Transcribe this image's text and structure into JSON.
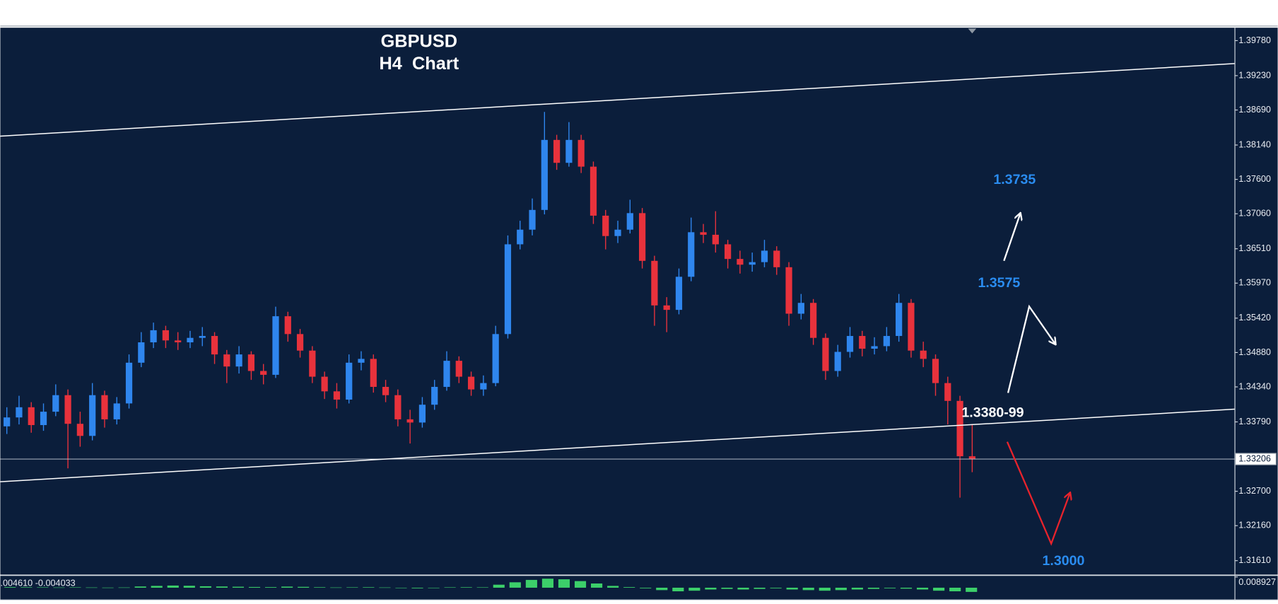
{
  "chart_data": [
    {
      "type": "candlestick",
      "title": "GBPUSD",
      "subtitle": "H4  Chart",
      "open": [
        1.3372,
        1.3386,
        1.3402,
        1.3374,
        1.3395,
        1.3421,
        1.3376,
        1.3357,
        1.3421,
        1.3383,
        1.3408,
        1.3472,
        1.3504,
        1.3523,
        1.3507,
        1.3504,
        1.3511,
        1.3514,
        1.3485,
        1.3466,
        1.3485,
        1.3459,
        1.3453,
        1.3545,
        1.3517,
        1.3491,
        1.345,
        1.3427,
        1.3414,
        1.3472,
        1.3478,
        1.3434,
        1.3421,
        1.3383,
        1.3378,
        1.3406,
        1.3434,
        1.3475,
        1.345,
        1.343,
        1.344,
        1.3517,
        1.3658,
        1.3681,
        1.3712,
        1.3822,
        1.3786,
        1.3822,
        1.378,
        1.3703,
        1.3671,
        1.3681,
        1.3707,
        1.3632,
        1.3562,
        1.3555,
        1.3607,
        1.3677,
        1.3673,
        1.3658,
        1.3635,
        1.3626,
        1.363,
        1.3648,
        1.3622,
        1.3549,
        1.3566,
        1.3511,
        1.3459,
        1.3489,
        1.3514,
        1.3494,
        1.3498,
        1.3514,
        1.3566,
        1.3491,
        1.3478,
        1.344,
        1.3412,
        1.3325
      ],
      "high": [
        1.3402,
        1.342,
        1.341,
        1.3408,
        1.3438,
        1.343,
        1.3395,
        1.344,
        1.3428,
        1.3418,
        1.3485,
        1.352,
        1.3535,
        1.353,
        1.352,
        1.3522,
        1.3528,
        1.352,
        1.3492,
        1.3498,
        1.349,
        1.347,
        1.356,
        1.3552,
        1.3525,
        1.3498,
        1.3458,
        1.344,
        1.3485,
        1.349,
        1.3485,
        1.3445,
        1.343,
        1.3398,
        1.3418,
        1.3445,
        1.349,
        1.3482,
        1.3458,
        1.3452,
        1.353,
        1.3672,
        1.3695,
        1.373,
        1.3866,
        1.383,
        1.385,
        1.383,
        1.3788,
        1.3712,
        1.3695,
        1.3728,
        1.3715,
        1.364,
        1.3575,
        1.362,
        1.37,
        1.369,
        1.371,
        1.3665,
        1.3648,
        1.3645,
        1.3665,
        1.3655,
        1.363,
        1.358,
        1.3572,
        1.3518,
        1.35,
        1.3528,
        1.3522,
        1.3512,
        1.3528,
        1.358,
        1.3572,
        1.3505,
        1.3485,
        1.345,
        1.342,
        1.3375
      ],
      "low": [
        1.336,
        1.3375,
        1.3362,
        1.3365,
        1.3388,
        1.3306,
        1.334,
        1.335,
        1.337,
        1.3375,
        1.34,
        1.3465,
        1.3495,
        1.3495,
        1.3492,
        1.3495,
        1.3498,
        1.347,
        1.344,
        1.3455,
        1.3445,
        1.3438,
        1.3448,
        1.3505,
        1.348,
        1.344,
        1.3415,
        1.34,
        1.3408,
        1.346,
        1.3425,
        1.341,
        1.3372,
        1.3345,
        1.337,
        1.3398,
        1.3428,
        1.344,
        1.342,
        1.342,
        1.3435,
        1.351,
        1.365,
        1.3672,
        1.3705,
        1.3775,
        1.378,
        1.377,
        1.369,
        1.365,
        1.366,
        1.3675,
        1.362,
        1.353,
        1.352,
        1.3548,
        1.36,
        1.366,
        1.3645,
        1.362,
        1.3612,
        1.3615,
        1.3622,
        1.361,
        1.353,
        1.354,
        1.35,
        1.3445,
        1.345,
        1.348,
        1.3482,
        1.3485,
        1.349,
        1.3505,
        1.348,
        1.3465,
        1.342,
        1.3375,
        1.326,
        1.33
      ],
      "close": [
        1.3386,
        1.3402,
        1.3374,
        1.3395,
        1.3421,
        1.3376,
        1.3357,
        1.3421,
        1.3383,
        1.3408,
        1.3472,
        1.3504,
        1.3523,
        1.3507,
        1.3504,
        1.3511,
        1.3514,
        1.3485,
        1.3466,
        1.3485,
        1.3459,
        1.3453,
        1.3545,
        1.3517,
        1.3491,
        1.345,
        1.3427,
        1.3414,
        1.3472,
        1.3478,
        1.3434,
        1.3421,
        1.3383,
        1.3378,
        1.3406,
        1.3434,
        1.3475,
        1.345,
        1.343,
        1.344,
        1.3517,
        1.3658,
        1.3681,
        1.3712,
        1.3822,
        1.3786,
        1.3822,
        1.378,
        1.3703,
        1.3671,
        1.3681,
        1.3707,
        1.3632,
        1.3562,
        1.3555,
        1.3607,
        1.3677,
        1.3673,
        1.3658,
        1.3635,
        1.3626,
        1.363,
        1.3648,
        1.3622,
        1.3549,
        1.3566,
        1.3511,
        1.3459,
        1.3489,
        1.3514,
        1.3494,
        1.3498,
        1.3514,
        1.3566,
        1.3491,
        1.3478,
        1.344,
        1.3412,
        1.3325,
        1.3321
      ],
      "up_color": "#2f86ee",
      "down_color": "#e8323c",
      "ylim": [
        1.3139,
        1.3997
      ],
      "yticks": [
        {
          "value": 1.3978,
          "label": "1.39780"
        },
        {
          "value": 1.3923,
          "label": "1.39230"
        },
        {
          "value": 1.3869,
          "label": "1.38690"
        },
        {
          "value": 1.3814,
          "label": "1.38140"
        },
        {
          "value": 1.376,
          "label": "1.37600"
        },
        {
          "value": 1.3706,
          "label": "1.37060"
        },
        {
          "value": 1.3651,
          "label": "1.36510"
        },
        {
          "value": 1.3597,
          "label": "1.35970"
        },
        {
          "value": 1.3542,
          "label": "1.35420"
        },
        {
          "value": 1.3488,
          "label": "1.34880"
        },
        {
          "value": 1.3434,
          "label": "1.34340"
        },
        {
          "value": 1.3379,
          "label": "1.33790"
        },
        {
          "value": 1.327,
          "label": "1.32700"
        },
        {
          "value": 1.3216,
          "label": "1.32160"
        },
        {
          "value": 1.3161,
          "label": "1.31610"
        }
      ],
      "last_price": {
        "value": 1.33206,
        "label": "1.33206"
      },
      "annotations": [
        {
          "text": "1.3735",
          "color": "#2a8cf0"
        },
        {
          "text": "1.3575",
          "color": "#2a8cf0"
        },
        {
          "text": "1.3380-99",
          "color": "#ffffff"
        },
        {
          "text": "1.3000",
          "color": "#2a8cf0"
        }
      ]
    },
    {
      "type": "bar",
      "value_text": ".004610 -0.004033",
      "values": [
        0.0005,
        0.0004,
        0.0003,
        0.0002,
        0.0003,
        0.0002,
        0.0001,
        0.0002,
        0.001,
        0.0015,
        0.0018,
        0.0016,
        0.0012,
        0.001,
        0.0008,
        0.0006,
        0.0005,
        0.0009,
        0.0007,
        0.0004,
        0.0002,
        0.0003,
        0.0004,
        0.0002,
        -0.0003,
        -0.0005,
        -0.0002,
        0.0003,
        0.0004,
        0.0003,
        0.0025,
        0.0045,
        0.0065,
        0.0075,
        0.007,
        0.0055,
        0.0035,
        0.0015,
        0.0005,
        -0.0005,
        -0.002,
        -0.003,
        -0.0025,
        -0.0015,
        -0.001,
        -0.0015,
        -0.001,
        -0.0005,
        -0.0015,
        -0.002,
        -0.0025,
        -0.002,
        -0.0015,
        -0.001,
        -0.0005,
        -0.0008,
        -0.0015,
        -0.0025,
        -0.003,
        -0.0035
      ],
      "color": "#3ccf6a",
      "ylim": [
        -0.0095,
        0.0095
      ],
      "yticks": [
        {
          "value": 0.008927,
          "label": "0.008927"
        }
      ]
    }
  ]
}
